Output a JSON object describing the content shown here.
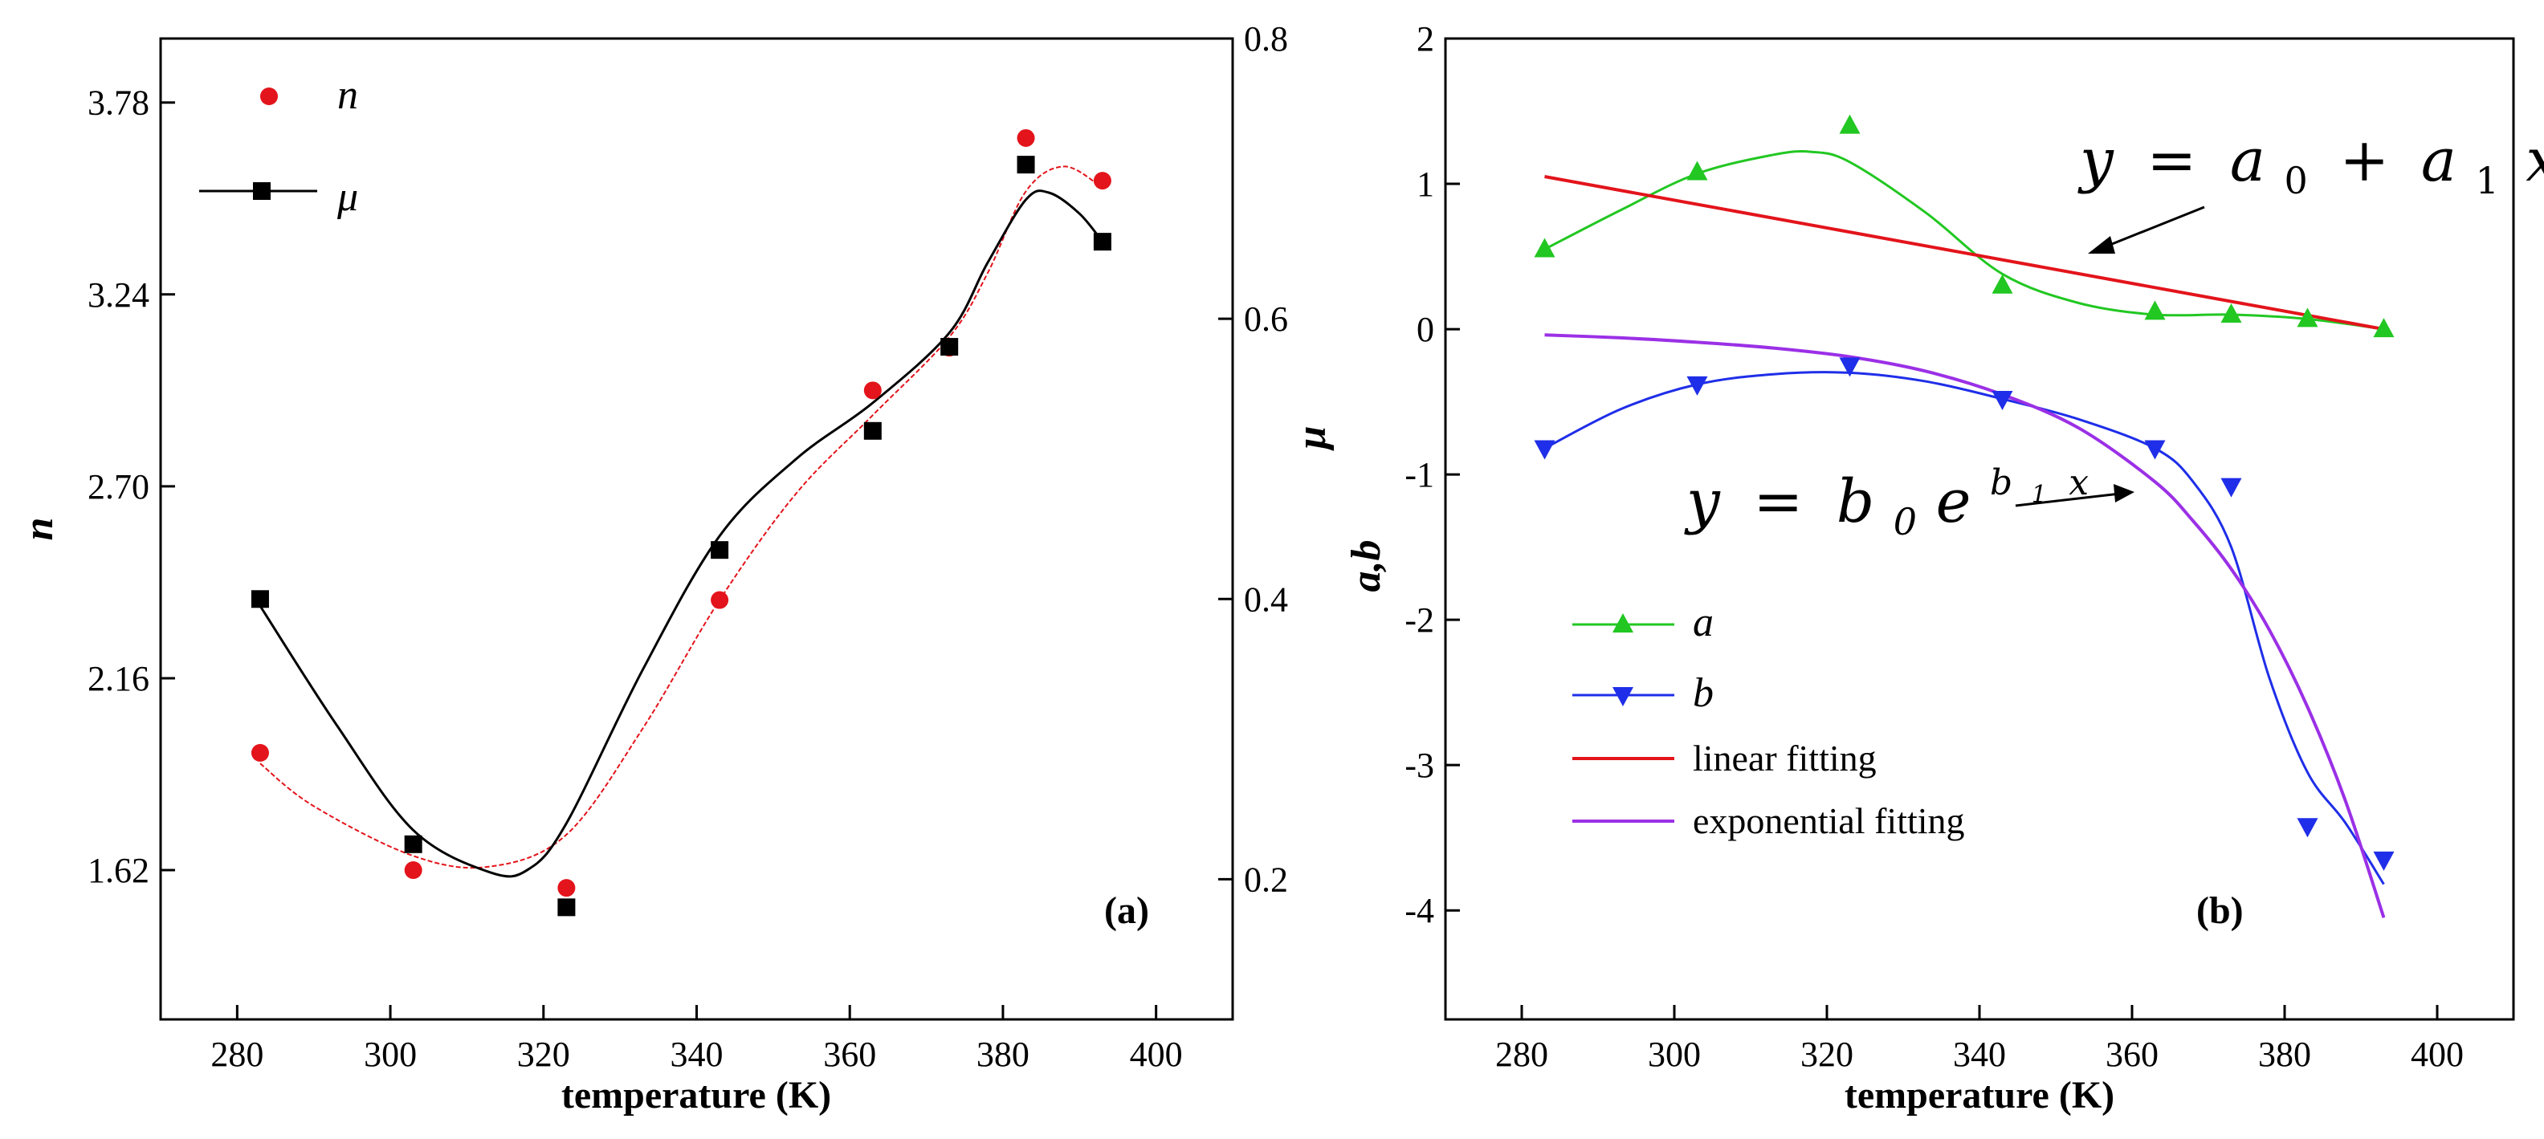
{
  "chart_data": [
    {
      "type": "scatter",
      "panel_label": "(a)",
      "xlabel": "temperature (K)",
      "ylabel": "n",
      "y2label": "μ",
      "xlim": [
        270,
        410
      ],
      "ylim": [
        1.2,
        3.96
      ],
      "y2lim": [
        0.1,
        0.8
      ],
      "x_ticks": [
        280,
        300,
        320,
        340,
        360,
        380,
        400
      ],
      "y_ticks": [
        1.62,
        2.16,
        2.7,
        3.24,
        3.78
      ],
      "y_tick_labels": [
        "1.62",
        "2.16",
        "2.70",
        "3.24",
        "3.78"
      ],
      "y2_ticks": [
        0.2,
        0.4,
        0.6,
        0.8
      ],
      "y2_tick_labels": [
        "0.2",
        "0.4",
        "0.6",
        "0.8"
      ],
      "legend_position": "top-left",
      "series": [
        {
          "name": "n",
          "axis": "left",
          "color": "#e3141b",
          "marker": "circle",
          "x": [
            283,
            303,
            323,
            343,
            363,
            373,
            383,
            393
          ],
          "y": [
            1.95,
            1.62,
            1.57,
            2.38,
            2.97,
            3.09,
            3.68,
            3.56
          ],
          "fit_x": [
            283,
            290,
            303,
            313,
            323,
            333,
            343,
            353,
            363,
            373,
            378,
            383,
            388,
            393
          ],
          "fit_y": [
            1.92,
            1.8,
            1.66,
            1.63,
            1.72,
            2.02,
            2.38,
            2.68,
            2.9,
            3.12,
            3.3,
            3.53,
            3.6,
            3.54
          ]
        },
        {
          "name": "μ",
          "axis": "right",
          "color": "#000000",
          "marker": "square",
          "x": [
            283,
            303,
            323,
            343,
            363,
            373,
            383,
            393
          ],
          "y": [
            0.4,
            0.225,
            0.18,
            0.435,
            0.52,
            0.58,
            0.71,
            0.655
          ],
          "fit_x": [
            283,
            293,
            303,
            313,
            318,
            323,
            333,
            343,
            353,
            363,
            373,
            378,
            383,
            386,
            390,
            393
          ],
          "fit_y": [
            0.395,
            0.31,
            0.235,
            0.205,
            0.207,
            0.24,
            0.35,
            0.445,
            0.5,
            0.54,
            0.59,
            0.64,
            0.685,
            0.69,
            0.675,
            0.655
          ]
        }
      ]
    },
    {
      "type": "scatter",
      "panel_label": "(b)",
      "xlabel": "temperature (K)",
      "ylabel": "a,b",
      "xlim": [
        270,
        410
      ],
      "ylim": [
        -4.75,
        2
      ],
      "x_ticks": [
        280,
        300,
        320,
        340,
        360,
        380,
        400
      ],
      "y_ticks": [
        -4,
        -3,
        -2,
        -1,
        0,
        1,
        2
      ],
      "y_tick_labels": [
        "-4",
        "-3",
        "-2",
        "-1",
        "0",
        "1",
        "2"
      ],
      "legend_position": "lower-left",
      "series": [
        {
          "name": "a",
          "color": "#22c722",
          "marker": "triangle-up",
          "x": [
            283,
            303,
            323,
            343,
            363,
            373,
            383,
            393
          ],
          "y": [
            0.55,
            1.08,
            1.4,
            0.3,
            0.12,
            0.1,
            0.07,
            0.0
          ],
          "fit_x": [
            283,
            293,
            303,
            313,
            318,
            323,
            333,
            343,
            353,
            363,
            373,
            383,
            393
          ],
          "fit_y": [
            0.55,
            0.82,
            1.07,
            1.2,
            1.22,
            1.15,
            0.8,
            0.38,
            0.18,
            0.1,
            0.1,
            0.07,
            0.0
          ]
        },
        {
          "name": "b",
          "color": "#1f2ee8",
          "marker": "triangle-down",
          "x": [
            283,
            303,
            323,
            343,
            363,
            373,
            383,
            393
          ],
          "y": [
            -0.82,
            -0.38,
            -0.25,
            -0.48,
            -0.82,
            -1.08,
            -3.42,
            -3.65
          ],
          "fit_x": [
            283,
            293,
            303,
            313,
            323,
            333,
            343,
            353,
            363,
            368,
            373,
            378,
            383,
            388,
            393
          ],
          "fit_y": [
            -0.82,
            -0.55,
            -0.38,
            -0.31,
            -0.3,
            -0.36,
            -0.48,
            -0.62,
            -0.82,
            -1.05,
            -1.5,
            -2.4,
            -3.05,
            -3.4,
            -3.82
          ]
        },
        {
          "name": "linear fitting",
          "color": "#e3141b",
          "marker": "none",
          "fit_x": [
            283,
            393
          ],
          "fit_y": [
            1.05,
            0.0
          ]
        },
        {
          "name": "exponential fitting",
          "color": "#9b30e6",
          "marker": "none",
          "fit_x": [
            283,
            293,
            303,
            313,
            323,
            333,
            343,
            353,
            363,
            368,
            373,
            378,
            383,
            388,
            393
          ],
          "fit_y": [
            -0.04,
            -0.06,
            -0.09,
            -0.13,
            -0.19,
            -0.29,
            -0.45,
            -0.68,
            -1.05,
            -1.32,
            -1.65,
            -2.07,
            -2.6,
            -3.25,
            -4.05
          ]
        }
      ],
      "annotations": [
        {
          "name": "linear-equation",
          "text_lhs": "y",
          "text_rhs": "a",
          "sub0": "0",
          "sub1": "1",
          "plus": "+",
          "eq": "=",
          "x_var": "x"
        },
        {
          "name": "exponential-equation",
          "text_lhs": "y",
          "base": "b",
          "sub0": "0",
          "e": "e",
          "exp_b": "b",
          "exp_sub": "1",
          "x_var": "x",
          "eq": "="
        }
      ]
    }
  ]
}
